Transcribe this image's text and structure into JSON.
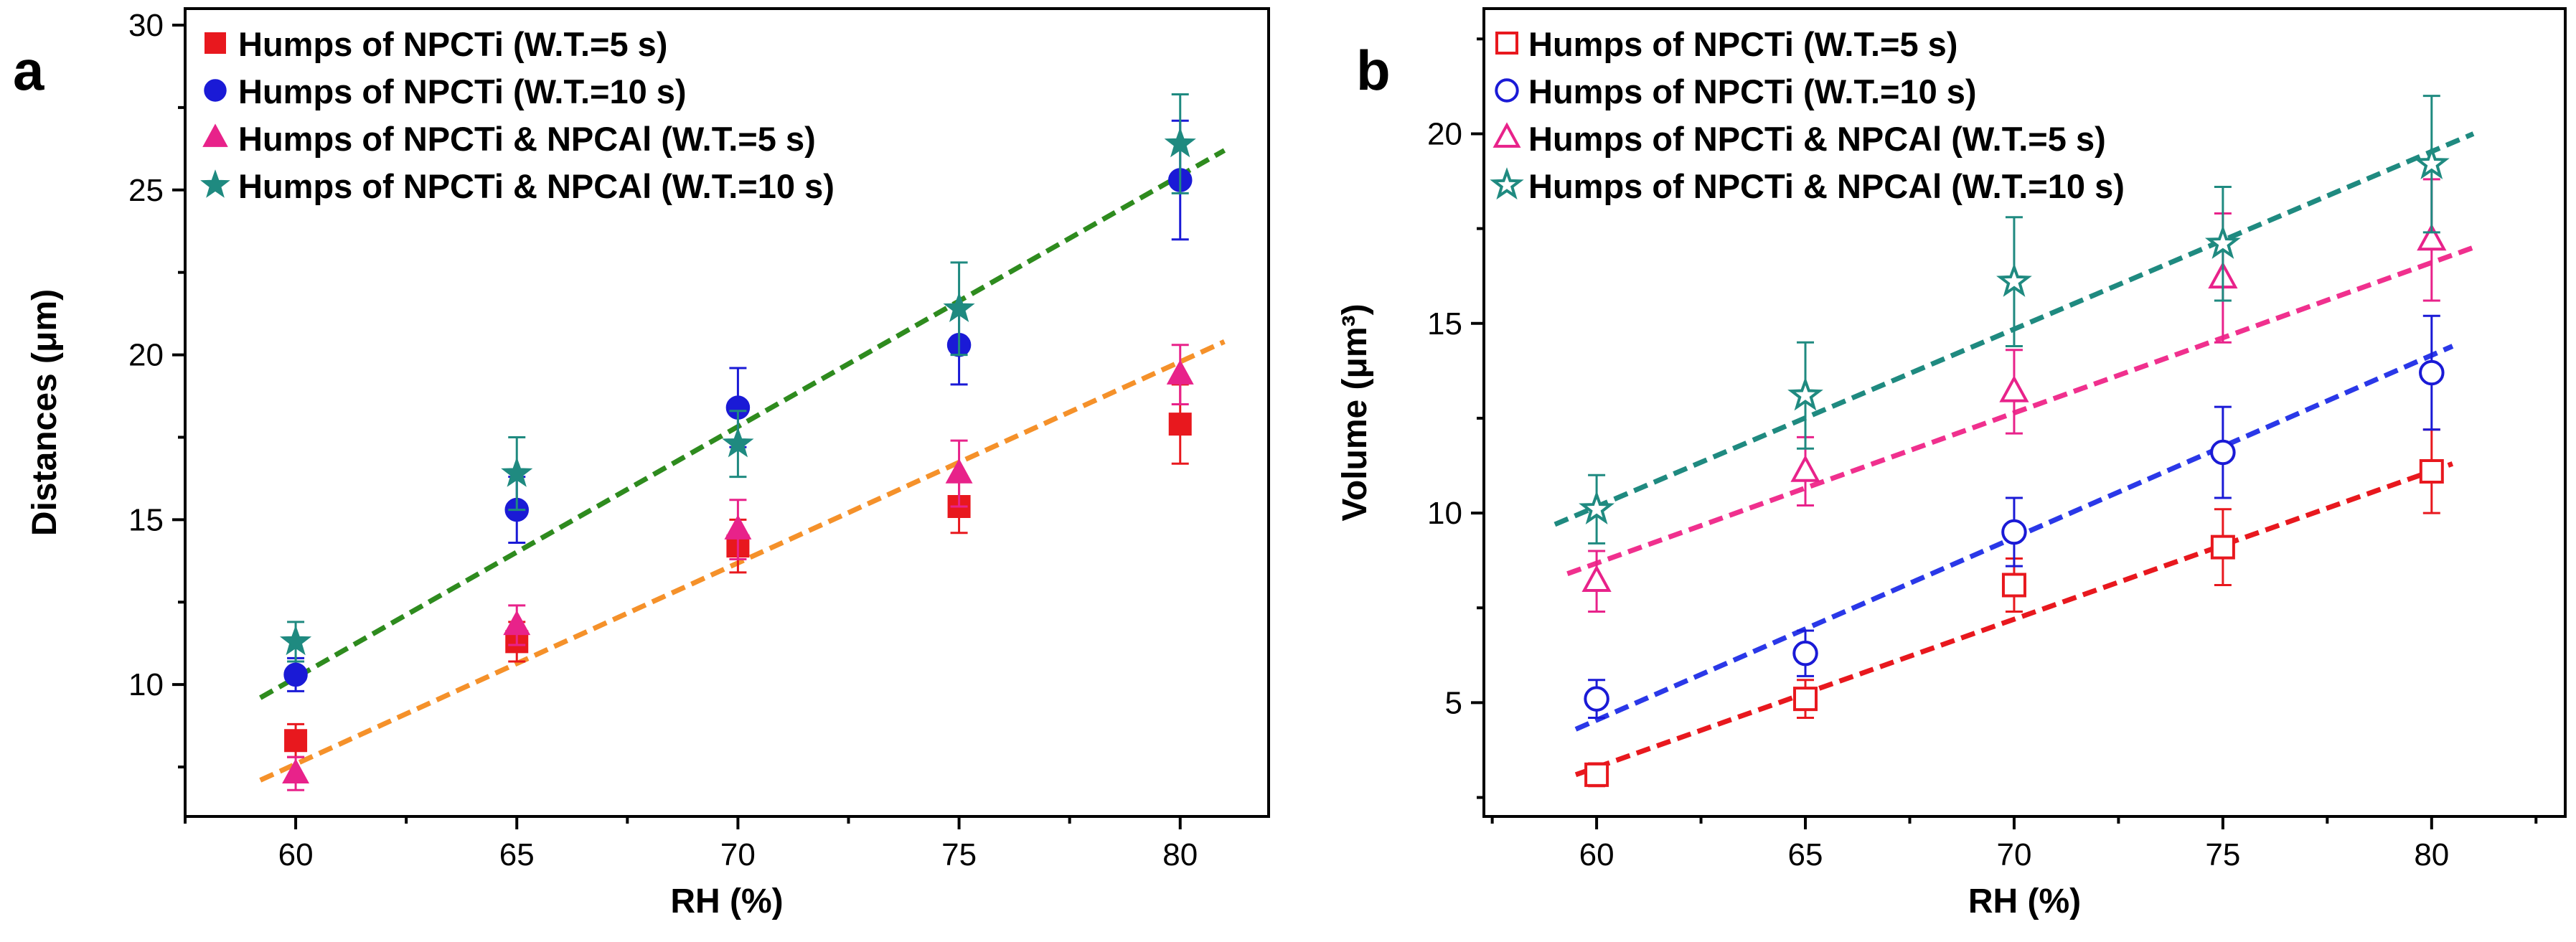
{
  "chart_data": [
    {
      "type": "scatter",
      "panel_label": "a",
      "xlabel": "RH (%)",
      "ylabel": "Distances (μm)",
      "xlim": [
        57.5,
        82
      ],
      "ylim": [
        6,
        30.5
      ],
      "xticks": [
        60,
        65,
        70,
        75,
        80
      ],
      "yticks": [
        10,
        15,
        20,
        25,
        30
      ],
      "legend_position": "top-left",
      "series": [
        {
          "name": "Humps of NPCTi (W.T.=5 s)",
          "color": "#e8181e",
          "marker": "square",
          "filled": true,
          "x": [
            60,
            65,
            70,
            75,
            80
          ],
          "y": [
            8.3,
            11.3,
            14.2,
            15.4,
            17.9
          ],
          "err": [
            0.5,
            0.6,
            0.8,
            0.8,
            1.2
          ]
        },
        {
          "name": "Humps of NPCTi (W.T.=10 s)",
          "color": "#1a1ad6",
          "marker": "circle",
          "filled": true,
          "x": [
            60,
            65,
            70,
            75,
            80
          ],
          "y": [
            10.3,
            15.3,
            18.4,
            20.3,
            25.3
          ],
          "err": [
            0.5,
            1.0,
            1.2,
            1.2,
            1.8
          ]
        },
        {
          "name": "Humps of NPCTi & NPCAl (W.T.=5 s)",
          "color": "#e8228a",
          "marker": "triangle",
          "filled": true,
          "x": [
            60,
            65,
            70,
            75,
            80
          ],
          "y": [
            7.3,
            11.8,
            14.7,
            16.4,
            19.4
          ],
          "err": [
            0.5,
            0.6,
            0.9,
            1.0,
            0.9
          ]
        },
        {
          "name": "Humps of NPCTi & NPCAl (W.T.=10 s)",
          "color": "#1f8a80",
          "marker": "star",
          "filled": true,
          "x": [
            60,
            65,
            70,
            75,
            80
          ],
          "y": [
            11.3,
            16.4,
            17.3,
            21.4,
            26.4
          ],
          "err": [
            0.6,
            1.1,
            1.0,
            1.4,
            1.5
          ]
        }
      ],
      "fit_lines": [
        {
          "color": "#2e8b1e",
          "x": [
            59.2,
            81
          ],
          "y": [
            9.6,
            26.2
          ]
        },
        {
          "color": "#f5912a",
          "x": [
            59.2,
            81
          ],
          "y": [
            7.1,
            20.4
          ]
        }
      ]
    },
    {
      "type": "scatter",
      "panel_label": "b",
      "xlabel": "RH (%)",
      "ylabel": "Volume (μm³)",
      "xlim": [
        57.3,
        83.2
      ],
      "ylim": [
        2,
        23.3
      ],
      "xticks": [
        60,
        65,
        70,
        75,
        80
      ],
      "yticks": [
        5,
        10,
        15,
        20
      ],
      "legend_position": "top-left",
      "series": [
        {
          "name": "Humps of NPCTi (W.T.=5 s)",
          "color": "#e8181e",
          "marker": "square",
          "filled": false,
          "x": [
            60,
            65,
            70,
            75,
            80
          ],
          "y": [
            3.1,
            5.1,
            8.1,
            9.1,
            11.1
          ],
          "err": [
            0.3,
            0.5,
            0.7,
            1.0,
            1.1
          ]
        },
        {
          "name": "Humps of NPCTi (W.T.=10 s)",
          "color": "#1a1ad6",
          "marker": "circle",
          "filled": false,
          "x": [
            60,
            65,
            70,
            75,
            80
          ],
          "y": [
            5.1,
            6.3,
            9.5,
            11.6,
            13.7
          ],
          "err": [
            0.5,
            0.6,
            0.9,
            1.2,
            1.5
          ]
        },
        {
          "name": "Humps of NPCTi & NPCAl (W.T.=5 s)",
          "color": "#e8228a",
          "marker": "triangle",
          "filled": false,
          "x": [
            60,
            65,
            70,
            75,
            80
          ],
          "y": [
            8.2,
            11.1,
            13.2,
            16.2,
            17.2
          ],
          "err": [
            0.8,
            0.9,
            1.1,
            1.7,
            1.6
          ]
        },
        {
          "name": "Humps of NPCTi & NPCAl (W.T.=10 s)",
          "color": "#1f8a80",
          "marker": "star",
          "filled": false,
          "x": [
            60,
            65,
            70,
            75,
            80
          ],
          "y": [
            10.1,
            13.1,
            16.1,
            17.1,
            19.2
          ],
          "err": [
            0.9,
            1.4,
            1.7,
            1.5,
            1.8
          ]
        }
      ],
      "fit_lines": [
        {
          "color": "#1f8a80",
          "x": [
            59,
            81
          ],
          "y": [
            9.7,
            20.0
          ]
        },
        {
          "color": "#f0308e",
          "x": [
            59.3,
            81
          ],
          "y": [
            8.4,
            17.0
          ]
        },
        {
          "color": "#2a38e8",
          "x": [
            59.5,
            80.5
          ],
          "y": [
            4.3,
            14.4
          ]
        },
        {
          "color": "#e8181e",
          "x": [
            59.5,
            80.5
          ],
          "y": [
            3.1,
            11.3
          ]
        }
      ]
    }
  ]
}
